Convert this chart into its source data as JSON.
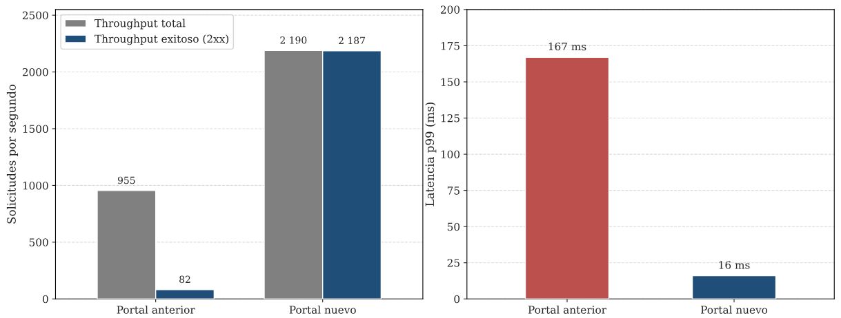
{
  "chart_data": [
    {
      "type": "bar",
      "categories": [
        "Portal anterior",
        "Portal nuevo"
      ],
      "ylabel": "Solicitudes por segundo",
      "ylim": [
        0,
        2550
      ],
      "yticks": [
        0,
        500,
        1000,
        1500,
        2000,
        2500
      ],
      "grid": "y",
      "legend": "top left",
      "series": [
        {
          "name": "Throughput total",
          "color": "#808080",
          "values": [
            955,
            2190
          ],
          "value_labels": [
            "955",
            "2 190"
          ]
        },
        {
          "name": "Throughput exitoso (2xx)",
          "color": "#1f4e79",
          "values": [
            82,
            2187
          ],
          "value_labels": [
            "82",
            "2 187"
          ]
        }
      ]
    },
    {
      "type": "bar",
      "categories": [
        "Portal anterior",
        "Portal nuevo"
      ],
      "ylabel": "Latencia p99 (ms)",
      "ylim": [
        0,
        200
      ],
      "yticks": [
        0,
        25,
        50,
        75,
        100,
        125,
        150,
        175,
        200
      ],
      "grid": "y",
      "values": [
        167,
        16
      ],
      "colors": [
        "#bc504c",
        "#1f4e79"
      ],
      "value_labels": [
        "167 ms",
        "16 ms"
      ]
    }
  ]
}
